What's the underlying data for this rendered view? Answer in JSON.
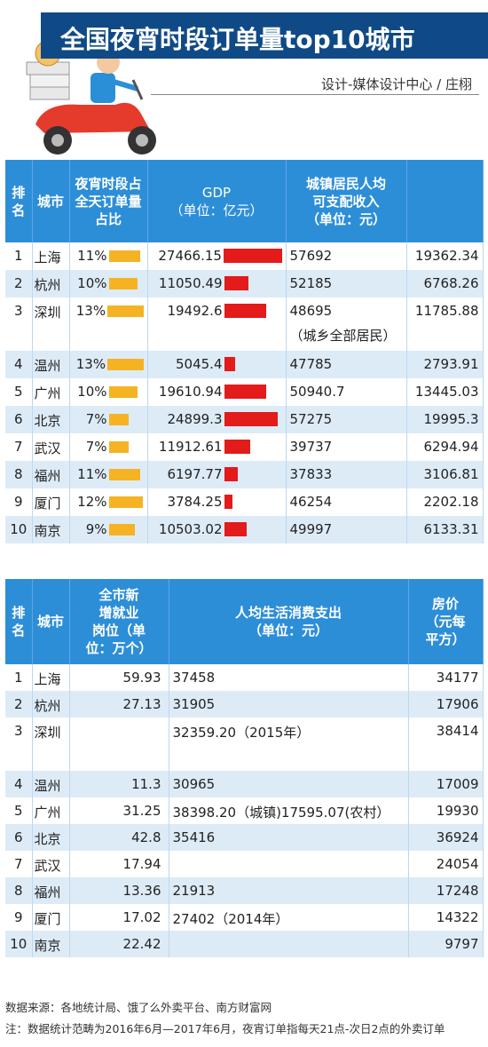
{
  "header": {
    "title": "全国夜宵时段订单量top10城市",
    "byline": "设计-媒体设计中心 / 庄栩"
  },
  "colors": {
    "header_bg": "#2d8ed8",
    "title_bg": "#0f4a86",
    "orange_bar": "#f5b324",
    "red_bar": "#e31b1b",
    "stripe": "#ddebf7"
  },
  "table1": {
    "headers": {
      "rank": "排名",
      "city": "城市",
      "share": "夜宵时段占全天订单量占比",
      "gdp_l1": "GDP",
      "gdp_l2": "（单位：亿元）",
      "income_l1": "城镇居民人均",
      "income_l2": "可支配收入",
      "income_l3": "（单位：元）"
    },
    "rows": [
      {
        "rank": "1",
        "city": "上海",
        "share": "11%",
        "share_pct": 11,
        "gdp": "27466.15",
        "gdp_value": 27466.15,
        "income": "57692",
        "extra": "19362.34"
      },
      {
        "rank": "2",
        "city": "杭州",
        "share": "10%",
        "share_pct": 10,
        "gdp": "11050.49",
        "gdp_value": 11050.49,
        "income": "52185",
        "extra": "6768.26"
      },
      {
        "rank": "3",
        "city": "深圳",
        "share": "13%",
        "share_pct": 13,
        "gdp": "19492.6",
        "gdp_value": 19492.6,
        "income": "48695",
        "income_note": "（城乡全部居民）",
        "extra": "11785.88"
      },
      {
        "rank": "4",
        "city": "温州",
        "share": "13%",
        "share_pct": 13,
        "gdp": "5045.4",
        "gdp_value": 5045.4,
        "income": "47785",
        "extra": "2793.91"
      },
      {
        "rank": "5",
        "city": "广州",
        "share": "10%",
        "share_pct": 10,
        "gdp": "19610.94",
        "gdp_value": 19610.94,
        "income": "50940.7",
        "extra": "13445.03"
      },
      {
        "rank": "6",
        "city": "北京",
        "share": "7%",
        "share_pct": 7,
        "gdp": "24899.3",
        "gdp_value": 24899.3,
        "income": "57275",
        "extra": "19995.3"
      },
      {
        "rank": "7",
        "city": "武汉",
        "share": "7%",
        "share_pct": 7,
        "gdp": "11912.61",
        "gdp_value": 11912.61,
        "income": "39737",
        "extra": "6294.94"
      },
      {
        "rank": "8",
        "city": "福州",
        "share": "11%",
        "share_pct": 11,
        "gdp": "6197.77",
        "gdp_value": 6197.77,
        "income": "37833",
        "extra": "3106.81"
      },
      {
        "rank": "9",
        "city": "厦门",
        "share": "12%",
        "share_pct": 12,
        "gdp": "3784.25",
        "gdp_value": 3784.25,
        "income": "46254",
        "extra": "2202.18"
      },
      {
        "rank": "10",
        "city": "南京",
        "share": "9%",
        "share_pct": 9,
        "gdp": "10503.02",
        "gdp_value": 10503.02,
        "income": "49997",
        "extra": "6133.31"
      }
    ]
  },
  "table2": {
    "headers": {
      "rank": "排名",
      "city": "城市",
      "jobs_l1": "全市新",
      "jobs_l2": "增就业",
      "jobs_l3": "岗位（单",
      "jobs_l4": "位：万个）",
      "spend_l1": "人均生活消费支出",
      "spend_l2": "（单位：元）",
      "price_l1": "房价",
      "price_l2": "（元每",
      "price_l3": "平方）"
    },
    "rows": [
      {
        "rank": "1",
        "city": "上海",
        "jobs": "59.93",
        "spend": "37458",
        "price": "34177"
      },
      {
        "rank": "2",
        "city": "杭州",
        "jobs": "27.13",
        "spend": "31905",
        "price": "17906"
      },
      {
        "rank": "3",
        "city": "深圳",
        "jobs": "",
        "spend": "32359.20（2015年）",
        "price": "38414"
      },
      {
        "rank": "4",
        "city": "温州",
        "jobs": "11.3",
        "spend": "30965",
        "price": "17009"
      },
      {
        "rank": "5",
        "city": "广州",
        "jobs": "31.25",
        "spend": "38398.20（城镇)17595.07(农村）",
        "price": "19930"
      },
      {
        "rank": "6",
        "city": "北京",
        "jobs": "42.8",
        "spend": "35416",
        "price": "36924"
      },
      {
        "rank": "7",
        "city": "武汉",
        "jobs": "17.94",
        "spend": "",
        "price": "24054"
      },
      {
        "rank": "8",
        "city": "福州",
        "jobs": "13.36",
        "spend": "21913",
        "price": "17248"
      },
      {
        "rank": "9",
        "city": "厦门",
        "jobs": "17.02",
        "spend": "27402（2014年）",
        "price": "14322"
      },
      {
        "rank": "10",
        "city": "南京",
        "jobs": "22.42",
        "spend": "",
        "price": "9797"
      }
    ]
  },
  "footer": {
    "source": "数据来源：各地统计局、饿了么外卖平台、南方财富网",
    "note": "注：数据统计范畴为2016年6月—2017年6月，夜宵订单指每天21点-次日2点的外卖订单"
  }
}
